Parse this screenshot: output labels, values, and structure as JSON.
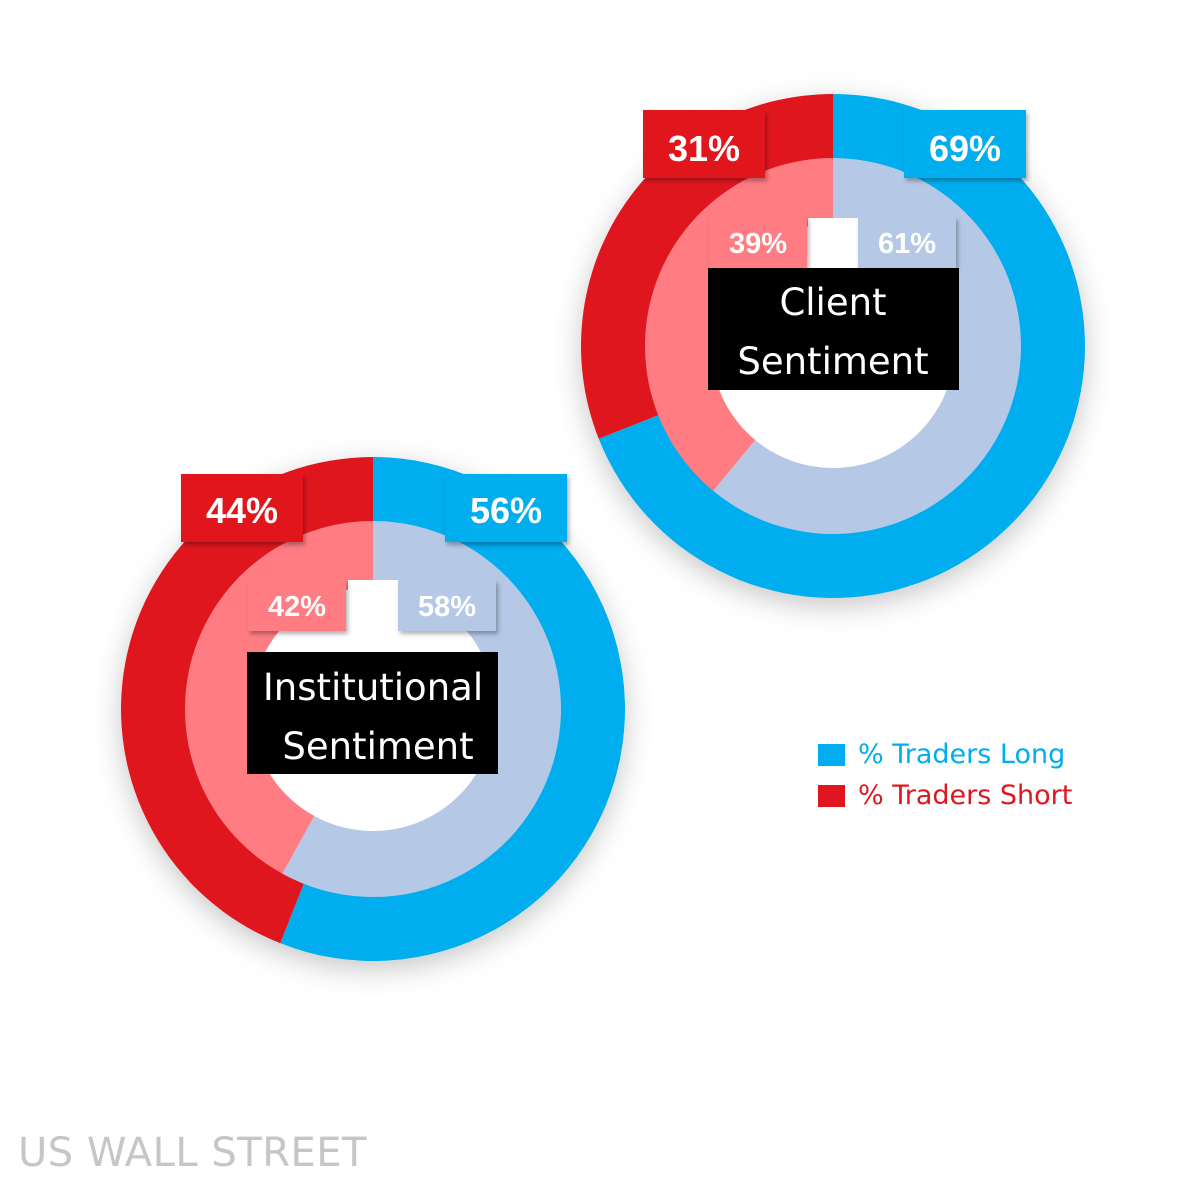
{
  "chart_data": [
    {
      "type": "pie",
      "title": "Client Sentiment",
      "outer_ring": {
        "long": 69,
        "short": 31,
        "long_label": "69%",
        "short_label": "31%"
      },
      "inner_ring": {
        "long": 61,
        "short": 39,
        "long_label": "61%",
        "short_label": "39%"
      }
    },
    {
      "type": "pie",
      "title": "Institutional Sentiment",
      "outer_ring": {
        "long": 56,
        "short": 44,
        "long_label": "56%",
        "short_label": "44%"
      },
      "inner_ring": {
        "long": 58,
        "short": 42,
        "long_label": "58%",
        "short_label": "42%"
      }
    }
  ],
  "legend": {
    "long": {
      "label": "% Traders Long",
      "color": "#00adef"
    },
    "short": {
      "label": "% Traders Short",
      "color": "#e0161f"
    }
  },
  "colors": {
    "long_outer": "#00adef",
    "short_outer": "#e0161f",
    "long_inner": "#b5c8e6",
    "short_inner": "#fe7c82",
    "center": "#000000"
  },
  "watermark": "US WALL STREET"
}
